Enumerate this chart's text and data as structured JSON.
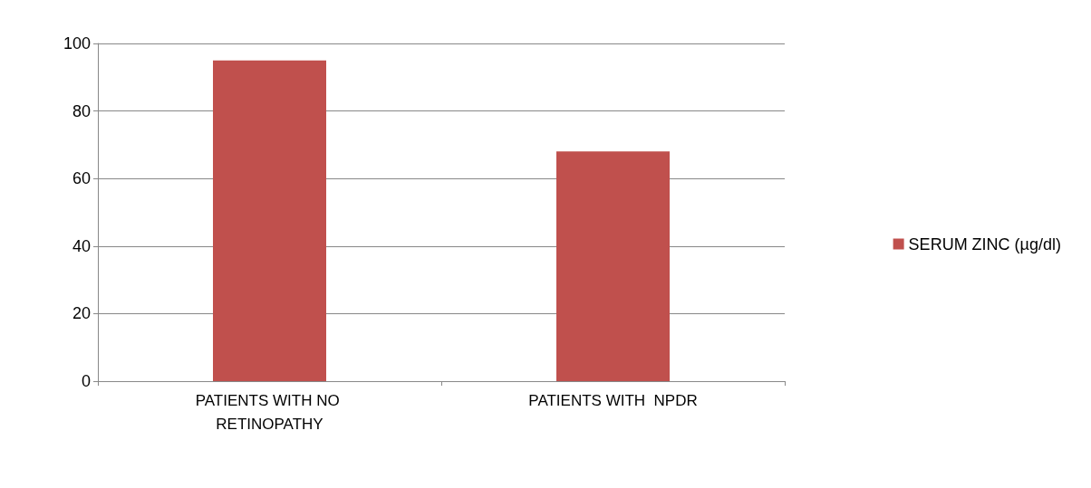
{
  "chart_data": {
    "type": "bar",
    "categories": [
      "PATIENTS WITH NO RETINOPATHY",
      "PATIENTS WITH  NPDR"
    ],
    "series": [
      {
        "name": "SERUM ZINC (µg/dl)",
        "color": "#c0504d",
        "values": [
          95,
          68
        ]
      }
    ],
    "ylim": [
      0,
      100
    ],
    "yticks": [
      0,
      20,
      40,
      60,
      80,
      100
    ],
    "grid": "y",
    "legend": "right"
  }
}
